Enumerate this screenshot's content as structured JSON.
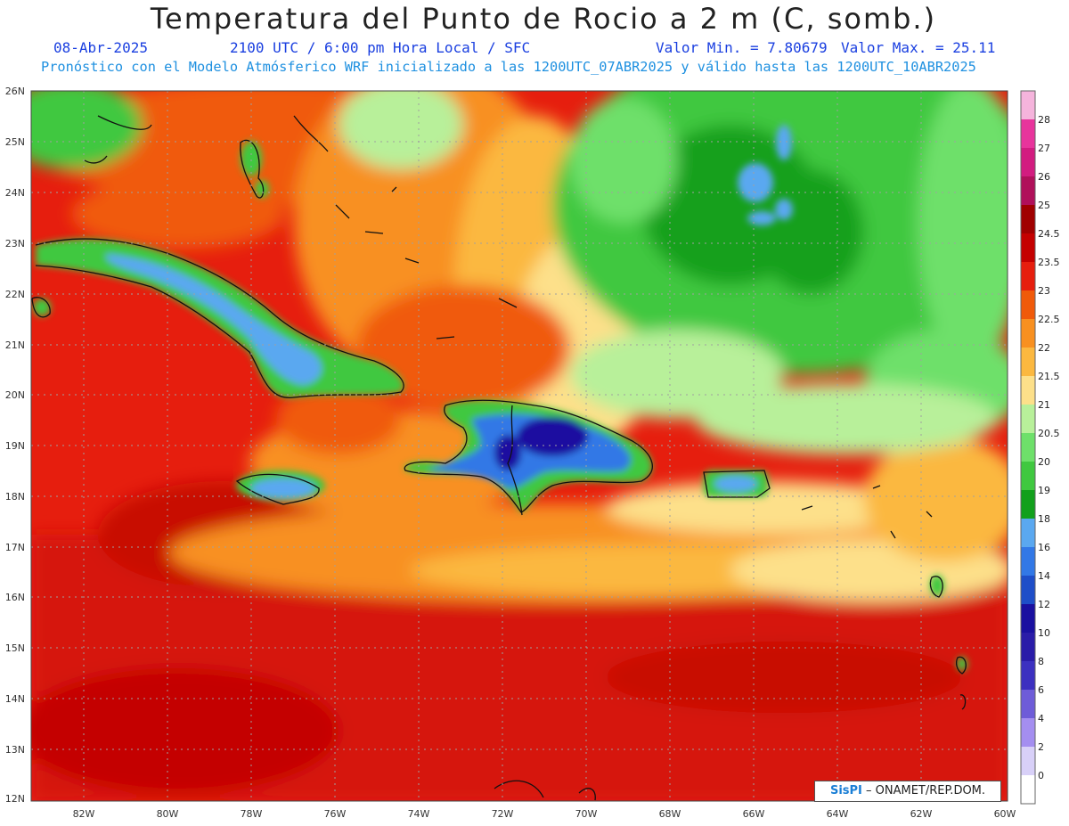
{
  "title": "Temperatura del Punto de Rocio a 2 m (C, somb.)",
  "subtitle": {
    "date": "08-Abr-2025",
    "time": "2100 UTC / 6:00 pm Hora Local / SFC",
    "min": "Valor Min. = 7.80679",
    "max": "Valor Max. = 25.11",
    "model": "Pronóstico con el Modelo Atmósferico WRF inicializado a las 1200UTC_07ABR2025 y válido hasta las  1200UTC_10ABR2025"
  },
  "axes": {
    "lat_labels": [
      "26N",
      "25N",
      "24N",
      "23N",
      "22N",
      "21N",
      "20N",
      "19N",
      "18N",
      "17N",
      "16N",
      "15N",
      "14N",
      "13N",
      "12N"
    ],
    "lon_labels": [
      "82W",
      "80W",
      "78W",
      "76W",
      "74W",
      "72W",
      "70W",
      "68W",
      "66W",
      "64W",
      "62W",
      "60W"
    ]
  },
  "colorbar": {
    "labels": [
      "28",
      "27",
      "26",
      "25",
      "24.5",
      "23.5",
      "23",
      "22.5",
      "22",
      "21.5",
      "21",
      "20.5",
      "20",
      "19",
      "18",
      "16",
      "14",
      "12",
      "10",
      "8",
      "6",
      "4",
      "2",
      "0"
    ],
    "colors": [
      "#f5b4dc",
      "#e8349c",
      "#d21c80",
      "#b0105a",
      "#a00000",
      "#c40000",
      "#e61e0e",
      "#f05a0a",
      "#f89020",
      "#fbb840",
      "#fde08a",
      "#b8f09a",
      "#6ee06a",
      "#40c840",
      "#12a01c",
      "#5aa8f0",
      "#3278e6",
      "#1e4ec8",
      "#1a10a0",
      "#2a1ca8",
      "#3c30c0",
      "#6e5cd8",
      "#a48ef0",
      "#d8d0f8",
      "#ffffff"
    ]
  },
  "credit": {
    "logo": "SisPI",
    "text": "– ONAMET/REP.DOM."
  }
}
